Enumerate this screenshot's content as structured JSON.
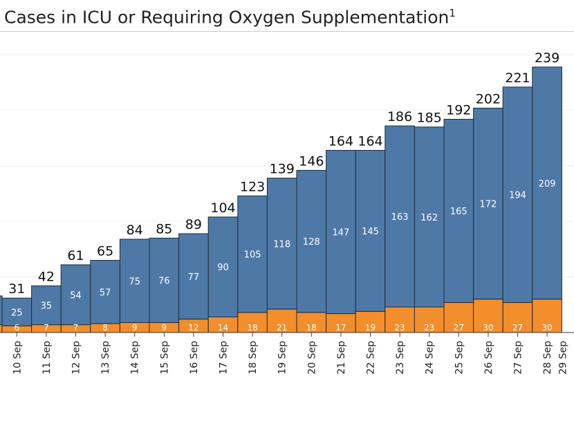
{
  "chart_data": {
    "type": "bar",
    "stacked": true,
    "title": "Cases in ICU or Requiring Oxygen Supplementation",
    "title_superscript": "1",
    "categories": [
      "10 Sep",
      "11 Sep",
      "12 Sep",
      "13 Sep",
      "14 Sep",
      "15 Sep",
      "16 Sep",
      "17 Sep",
      "18 Sep",
      "19 Sep",
      "20 Sep",
      "21 Sep",
      "22 Sep",
      "23 Sep",
      "24 Sep",
      "25 Sep",
      "26 Sep",
      "27 Sep",
      "28 Sep"
    ],
    "extra_tick_label": "29 Sep",
    "series": [
      {
        "values": [
          6,
          7,
          7,
          8,
          9,
          9,
          12,
          14,
          18,
          21,
          18,
          17,
          19,
          23,
          23,
          27,
          30,
          27,
          30
        ],
        "color": "#f28e2b"
      },
      {
        "values": [
          25,
          35,
          54,
          57,
          75,
          76,
          77,
          90,
          105,
          118,
          128,
          147,
          145,
          163,
          162,
          165,
          172,
          194,
          209
        ],
        "color": "#4e79a7"
      }
    ],
    "totals": [
      31,
      42,
      61,
      65,
      84,
      85,
      89,
      104,
      123,
      139,
      146,
      164,
      164,
      186,
      185,
      192,
      202,
      221,
      239
    ],
    "ylim": [
      0,
      250
    ],
    "grid": true,
    "xlabel": "",
    "ylabel": ""
  }
}
